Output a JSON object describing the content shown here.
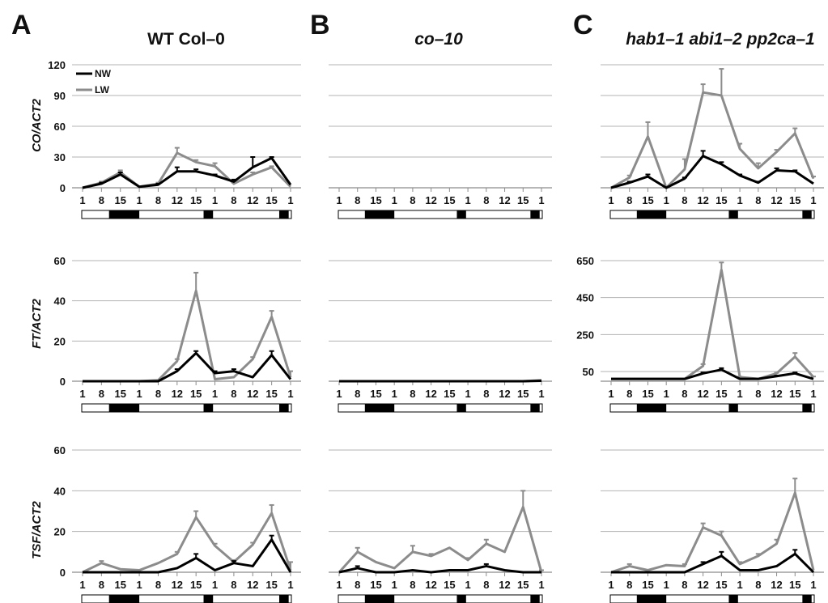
{
  "figure": {
    "panel_labels": [
      "A",
      "B",
      "C"
    ],
    "panel_titles": [
      "WT Col–0",
      "co–10",
      "hab1–1 abi1–2 pp2ca–1"
    ],
    "row_ylabels": [
      "CO/ACT2",
      "FT/ACT2",
      "TSF/ACT2"
    ],
    "legend": [
      "NW",
      "LW"
    ]
  },
  "colors": {
    "NW": "#000000",
    "LW": "#8c8c8c",
    "grid": "#b3b3b3",
    "axis": "#8c8c8c"
  },
  "chart_data": [
    {
      "id": "A-CO",
      "type": "line",
      "ylabel": "CO/ACT2",
      "x": [
        "1",
        "8",
        "15",
        "1",
        "8",
        "12",
        "15",
        "1",
        "8",
        "12",
        "15",
        "1"
      ],
      "yticks": [
        0,
        30,
        60,
        90,
        120
      ],
      "ylim": [
        0,
        120
      ],
      "legend": "top-left",
      "series": [
        {
          "name": "NW",
          "values": [
            0,
            4,
            13,
            1,
            3,
            16,
            16,
            12,
            6,
            20,
            29,
            3
          ],
          "errors": [
            0,
            1,
            2,
            0,
            1,
            4,
            2,
            1,
            2,
            10,
            1,
            0
          ]
        },
        {
          "name": "LW",
          "values": [
            0,
            5,
            15,
            1,
            4,
            34,
            25,
            21,
            4,
            13,
            20,
            1
          ],
          "errors": [
            0,
            1,
            2,
            0,
            1,
            5,
            2,
            3,
            1,
            2,
            1,
            0
          ]
        }
      ]
    },
    {
      "id": "B-CO",
      "type": "line",
      "ylabel": "",
      "x": [],
      "yticks": [
        0,
        30,
        60,
        90,
        120
      ],
      "ylim": [
        0,
        120
      ],
      "series": []
    },
    {
      "id": "C-CO",
      "type": "line",
      "ylabel": "",
      "x": [
        "1",
        "8",
        "15",
        "1",
        "8",
        "12",
        "15",
        "1",
        "8",
        "12",
        "15",
        "1"
      ],
      "yticks": [
        0,
        30,
        60,
        90,
        120
      ],
      "ylim": [
        0,
        120
      ],
      "series": [
        {
          "name": "NW",
          "values": [
            0,
            5,
            11,
            0,
            9,
            31,
            23,
            12,
            5,
            17,
            16,
            4
          ],
          "errors": [
            0,
            1,
            2,
            0,
            1,
            5,
            2,
            1,
            1,
            2,
            1,
            0
          ]
        },
        {
          "name": "LW",
          "values": [
            0,
            10,
            50,
            0,
            18,
            93,
            90,
            38,
            19,
            35,
            53,
            9
          ],
          "errors": [
            0,
            2,
            14,
            0,
            10,
            8,
            26,
            5,
            5,
            2,
            5,
            2
          ]
        }
      ]
    },
    {
      "id": "A-FT",
      "type": "line",
      "ylabel": "FT/ACT2",
      "x": [
        "1",
        "8",
        "15",
        "1",
        "8",
        "12",
        "15",
        "1",
        "8",
        "12",
        "15",
        "1"
      ],
      "yticks": [
        0,
        20,
        40,
        60
      ],
      "ylim": [
        0,
        60
      ],
      "series": [
        {
          "name": "NW",
          "values": [
            0,
            0,
            0,
            0,
            0,
            5,
            14,
            4,
            5,
            2,
            13,
            1
          ],
          "errors": [
            0,
            0,
            0,
            0,
            0,
            1,
            1,
            1,
            1,
            0,
            2,
            0
          ]
        },
        {
          "name": "LW",
          "values": [
            0,
            0,
            0,
            0,
            0.5,
            10,
            45,
            1,
            2,
            11,
            32,
            2
          ],
          "errors": [
            0,
            0,
            0,
            0,
            0,
            1,
            9,
            0,
            0,
            1,
            3,
            3
          ]
        }
      ]
    },
    {
      "id": "B-FT",
      "type": "line",
      "ylabel": "",
      "x": [
        "1",
        "8",
        "15",
        "1",
        "8",
        "12",
        "15",
        "1",
        "8",
        "12",
        "15",
        "1"
      ],
      "yticks": [
        0,
        20,
        40,
        60
      ],
      "ylim": [
        0,
        60
      ],
      "series": [
        {
          "name": "NW",
          "values": [
            0,
            0,
            0,
            0,
            0,
            0,
            0,
            0,
            0,
            0,
            0,
            0.2
          ],
          "errors": [
            0,
            0,
            0,
            0,
            0,
            0,
            0,
            0,
            0,
            0,
            0,
            0
          ]
        },
        {
          "name": "LW",
          "values": [
            0,
            0,
            0,
            0,
            0,
            0,
            0,
            0,
            0,
            0,
            0,
            0.5
          ],
          "errors": [
            0,
            0,
            0,
            0,
            0,
            0,
            0,
            0,
            0,
            0,
            0,
            0
          ]
        }
      ]
    },
    {
      "id": "C-FT",
      "type": "line",
      "ylabel": "",
      "x": [
        "1",
        "8",
        "15",
        "1",
        "8",
        "12",
        "15",
        "1",
        "8",
        "12",
        "15",
        "1"
      ],
      "yticks": [
        50,
        250,
        450,
        650
      ],
      "ylim": [
        0,
        650
      ],
      "yaxis_start": 30,
      "series": [
        {
          "name": "NW",
          "values": [
            10,
            10,
            10,
            10,
            10,
            40,
            60,
            10,
            10,
            25,
            40,
            10
          ],
          "errors": [
            0,
            0,
            0,
            0,
            0,
            5,
            8,
            0,
            0,
            3,
            5,
            0
          ]
        },
        {
          "name": "LW",
          "values": [
            10,
            10,
            10,
            10,
            10,
            80,
            600,
            20,
            10,
            40,
            130,
            20
          ],
          "errors": [
            0,
            0,
            0,
            0,
            0,
            10,
            40,
            2,
            0,
            3,
            20,
            3
          ]
        }
      ]
    },
    {
      "id": "A-TSF",
      "type": "line",
      "ylabel": "TSF/ACT2",
      "x": [
        "1",
        "8",
        "15",
        "1",
        "8",
        "12",
        "15",
        "1",
        "8",
        "12",
        "15",
        "1"
      ],
      "yticks": [
        0,
        20,
        40,
        60
      ],
      "ylim": [
        0,
        60
      ],
      "series": [
        {
          "name": "NW",
          "values": [
            0,
            0,
            0,
            0,
            0,
            2,
            7,
            1,
            4.5,
            3,
            16,
            0
          ],
          "errors": [
            0,
            0,
            0,
            0,
            0,
            0,
            2,
            0,
            1,
            0,
            2,
            0
          ]
        },
        {
          "name": "LW",
          "values": [
            0,
            4.5,
            1.5,
            1,
            4.5,
            9,
            27,
            13,
            5,
            13.5,
            29,
            1
          ],
          "errors": [
            0,
            1,
            0,
            0,
            0,
            1,
            3,
            1,
            1,
            1,
            4,
            4
          ]
        }
      ]
    },
    {
      "id": "B-TSF",
      "type": "line",
      "ylabel": "",
      "x": [
        "1",
        "8",
        "15",
        "1",
        "8",
        "12",
        "15",
        "1",
        "8",
        "12",
        "15",
        "1"
      ],
      "yticks": [
        0,
        20,
        40,
        60
      ],
      "ylim": [
        0,
        60
      ],
      "series": [
        {
          "name": "NW",
          "values": [
            0,
            2,
            0,
            0,
            1,
            0,
            1,
            1,
            3,
            1,
            0,
            0
          ],
          "errors": [
            0,
            1,
            0,
            0,
            0,
            0,
            0,
            0,
            1,
            0,
            0,
            0
          ]
        },
        {
          "name": "LW",
          "values": [
            0,
            10,
            5,
            2,
            10,
            8,
            12,
            6,
            14,
            10,
            32,
            0
          ],
          "errors": [
            0,
            2,
            0,
            0,
            3,
            1,
            0,
            1,
            2,
            0,
            8,
            1
          ]
        }
      ]
    },
    {
      "id": "C-TSF",
      "type": "line",
      "ylabel": "",
      "x": [
        "1",
        "8",
        "15",
        "1",
        "8",
        "12",
        "15",
        "1",
        "8",
        "12",
        "15",
        "1"
      ],
      "yticks": [
        0,
        20,
        40,
        60
      ],
      "ylim": [
        0,
        60
      ],
      "series": [
        {
          "name": "NW",
          "values": [
            0,
            0,
            0,
            0,
            0,
            4,
            8,
            1,
            1,
            3,
            9,
            0
          ],
          "errors": [
            0,
            0,
            0,
            0,
            0,
            1,
            2,
            0,
            0,
            0,
            2,
            0
          ]
        },
        {
          "name": "LW",
          "values": [
            0,
            3,
            1,
            3.5,
            3,
            22,
            18,
            4,
            8,
            14,
            39,
            1
          ],
          "errors": [
            0,
            1,
            0,
            0,
            1,
            2,
            2,
            1,
            1,
            2,
            7,
            0
          ]
        }
      ]
    }
  ]
}
